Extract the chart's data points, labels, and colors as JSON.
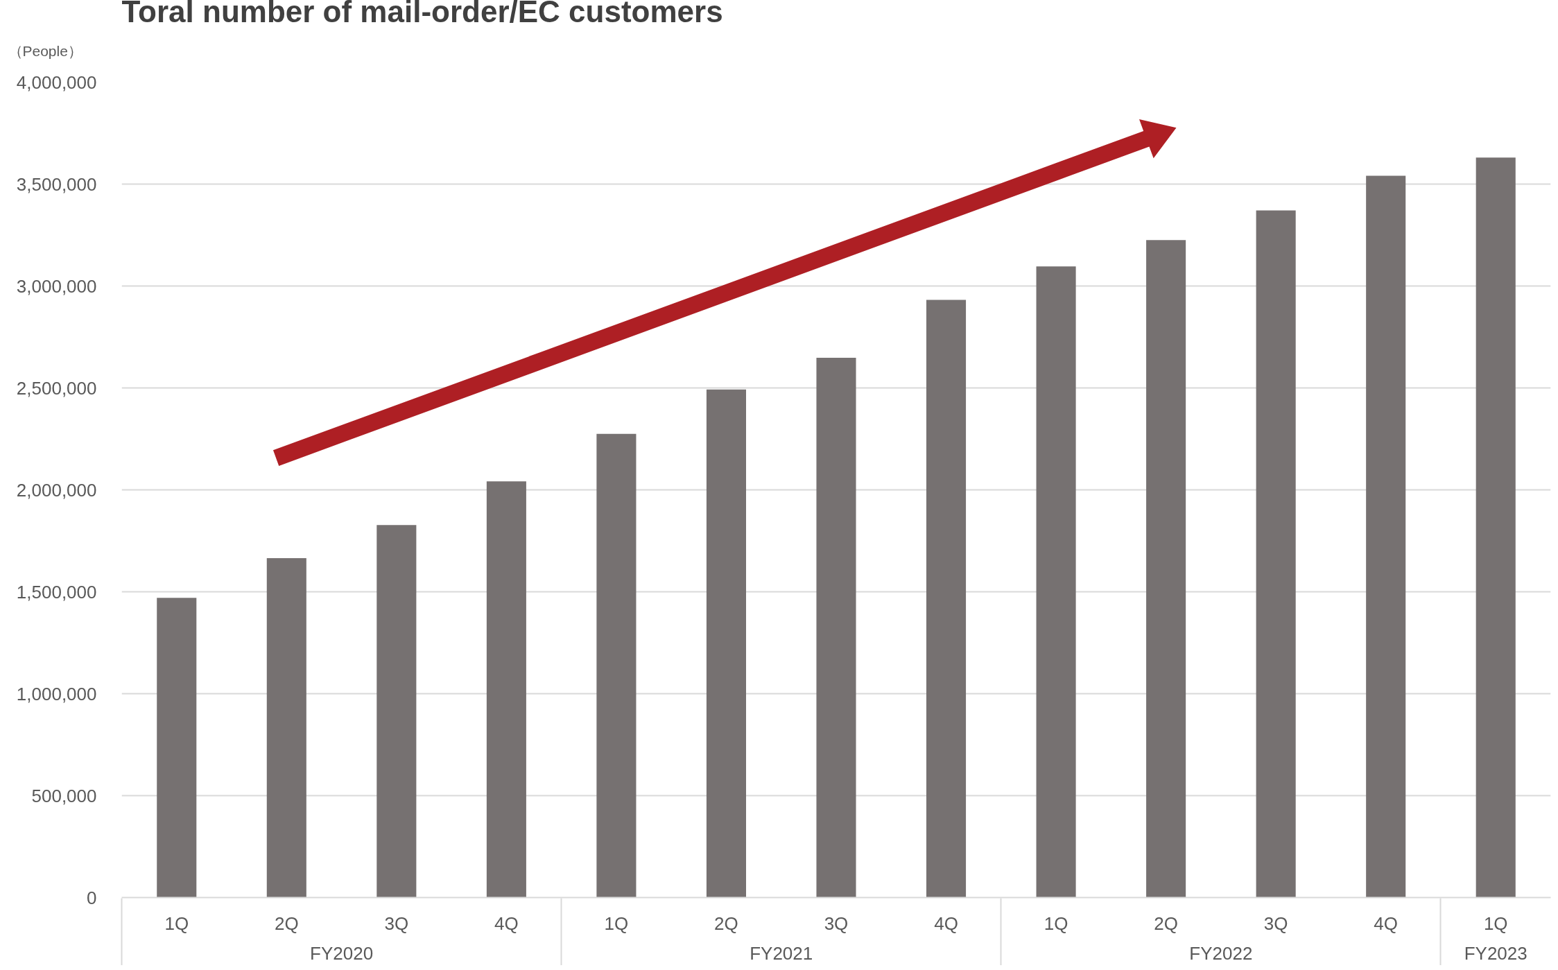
{
  "chart_data": {
    "type": "bar",
    "title": "Toral number of mail-order/EC customers",
    "ylabel": "（People）",
    "categories": [
      "1Q",
      "2Q",
      "3Q",
      "4Q",
      "1Q",
      "2Q",
      "3Q",
      "4Q",
      "1Q",
      "2Q",
      "3Q",
      "4Q",
      "1Q"
    ],
    "values": [
      1470000,
      1665000,
      1827000,
      2042000,
      2275000,
      2492000,
      2648000,
      2932000,
      3096000,
      3225000,
      3371000,
      3541000,
      3630000
    ],
    "color": "#767171",
    "ylim": [
      0,
      4000000
    ],
    "yticks": [
      0,
      {
        "value": 500000,
        "label": "500,000"
      },
      {
        "value": 1000000,
        "label": "1,000,000"
      },
      {
        "value": 1500000,
        "label": "1,500,000"
      },
      {
        "value": 2000000,
        "label": "2,000,000"
      },
      {
        "value": 2500000,
        "label": "2,500,000"
      },
      {
        "value": 3000000,
        "label": "3,000,000"
      },
      {
        "value": 3500000,
        "label": "3,500,000"
      },
      {
        "value": 4000000,
        "label": "4,000,000"
      }
    ],
    "grid": "y",
    "annotations": [
      "FY2020",
      "FY2021",
      "FY2022",
      "FY2023"
    ]
  }
}
